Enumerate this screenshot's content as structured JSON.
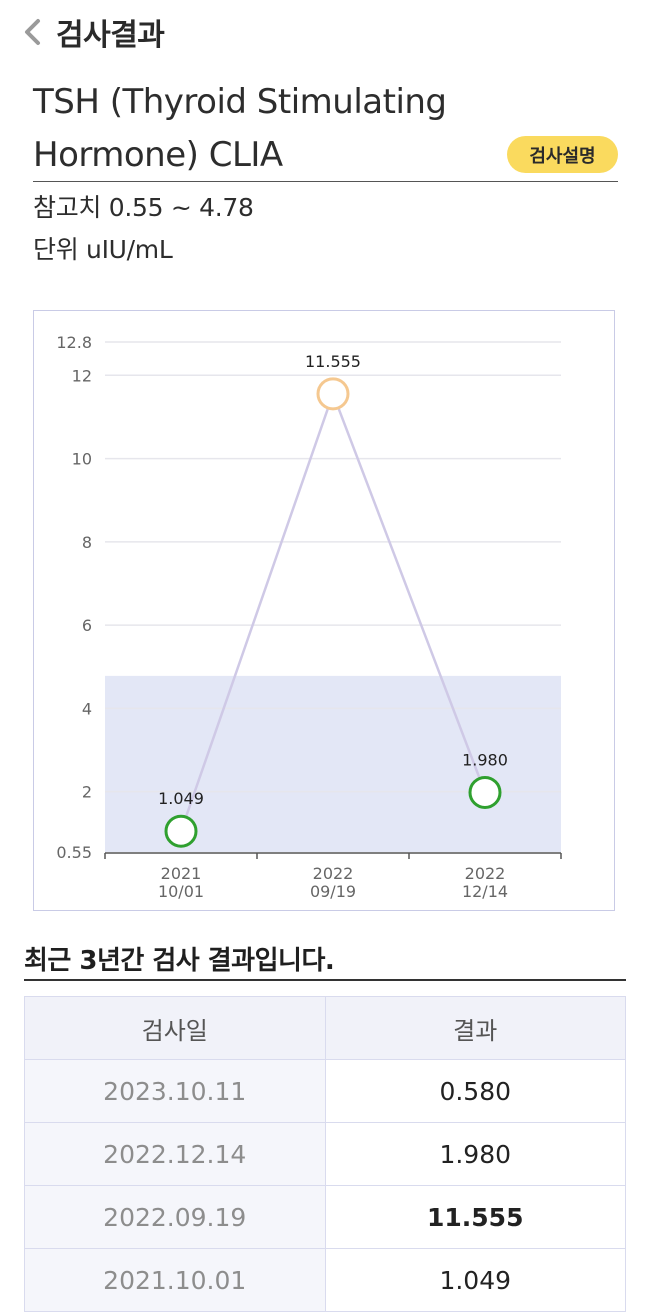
{
  "header": {
    "title": "검사결과",
    "back_icon": "chevron-left-icon"
  },
  "test": {
    "name_line1": "TSH (Thyroid Stimulating",
    "name_line2": "Hormone) CLIA",
    "description_button": "검사설명",
    "reference_label": "참고치 0.55 ~ 4.78",
    "unit_label": "단위 uIU/mL"
  },
  "colors": {
    "badge_bg": "#fada5e",
    "normal_band": "#e3e7f6",
    "line": "#cfc9e6",
    "normal_point": "#2fa02f",
    "high_point": "#f5c890"
  },
  "chart_data": {
    "type": "line",
    "y_ticks": [
      "12.8",
      "12",
      "10",
      "8",
      "6",
      "4",
      "2",
      "0.55"
    ],
    "ylim": [
      0.55,
      12.8
    ],
    "reference_range": [
      0.55,
      4.78
    ],
    "grid": true,
    "categories": [
      {
        "year": "2021",
        "date": "10/01"
      },
      {
        "year": "2022",
        "date": "09/19"
      },
      {
        "year": "2022",
        "date": "12/14"
      }
    ],
    "series": [
      {
        "values": [
          1.049,
          11.555,
          1.98
        ],
        "labels": [
          "1.049",
          "11.555",
          "1.980"
        ],
        "status": [
          "normal",
          "high",
          "normal"
        ]
      }
    ]
  },
  "recent": {
    "title": "최근 3년간 검사 결과입니다.",
    "columns": [
      "검사일",
      "결과"
    ],
    "rows": [
      {
        "date": "2023.10.11",
        "value": "0.580",
        "bold": false
      },
      {
        "date": "2022.12.14",
        "value": "1.980",
        "bold": false
      },
      {
        "date": "2022.09.19",
        "value": "11.555",
        "bold": true
      },
      {
        "date": "2021.10.01",
        "value": "1.049",
        "bold": false
      }
    ]
  }
}
